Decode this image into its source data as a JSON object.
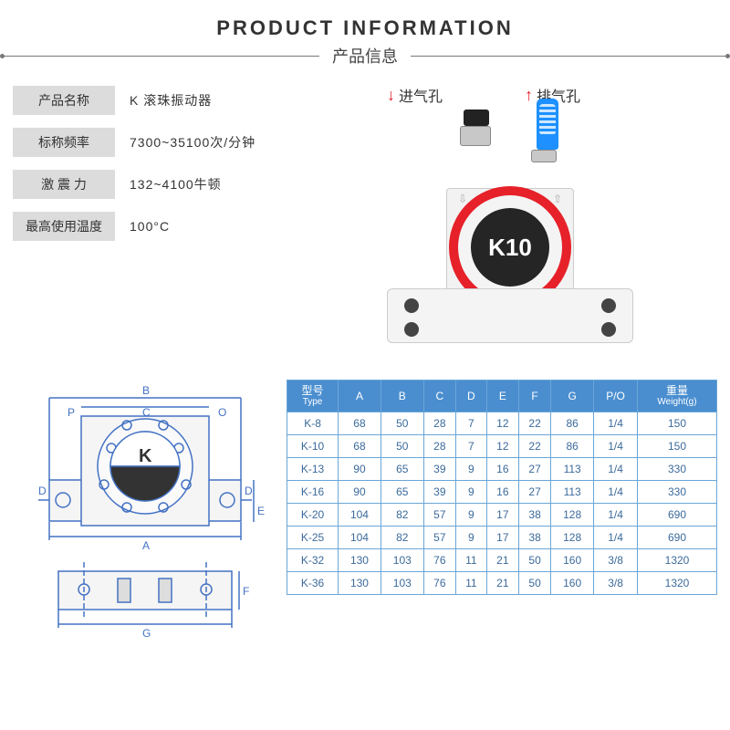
{
  "header": {
    "title_en": "PRODUCT INFORMATION",
    "title_zh": "产品信息"
  },
  "callouts": {
    "inlet": "进气孔",
    "outlet": "排气孔"
  },
  "product_label": "K10",
  "specs": [
    {
      "label": "产品名称",
      "value": "K 滚珠振动器",
      "spaced": false
    },
    {
      "label": "标称频率",
      "value": "7300~35100次/分钟",
      "spaced": false
    },
    {
      "label": "激 震 力",
      "value": "132~4100牛顿",
      "spaced": false
    },
    {
      "label": "最高使用温度",
      "value": "100°C",
      "spaced": false
    }
  ],
  "drawing": {
    "letter": "K",
    "dims": [
      "A",
      "B",
      "C",
      "D",
      "E",
      "F",
      "G",
      "P",
      "O"
    ]
  },
  "table": {
    "columns": [
      {
        "zh": "型号",
        "en": "Type"
      },
      {
        "zh": "A",
        "en": ""
      },
      {
        "zh": "B",
        "en": ""
      },
      {
        "zh": "C",
        "en": ""
      },
      {
        "zh": "D",
        "en": ""
      },
      {
        "zh": "E",
        "en": ""
      },
      {
        "zh": "F",
        "en": ""
      },
      {
        "zh": "G",
        "en": ""
      },
      {
        "zh": "P/O",
        "en": ""
      },
      {
        "zh": "重量",
        "en": "Weight(g)"
      }
    ],
    "rows": [
      [
        "K-8",
        68,
        50,
        28,
        7,
        12,
        22,
        86,
        "1/4",
        150
      ],
      [
        "K-10",
        68,
        50,
        28,
        7,
        12,
        22,
        86,
        "1/4",
        150
      ],
      [
        "K-13",
        90,
        65,
        39,
        9,
        16,
        27,
        113,
        "1/4",
        330
      ],
      [
        "K-16",
        90,
        65,
        39,
        9,
        16,
        27,
        113,
        "1/4",
        330
      ],
      [
        "K-20",
        104,
        82,
        57,
        9,
        17,
        38,
        128,
        "1/4",
        690
      ],
      [
        "K-25",
        104,
        82,
        57,
        9,
        17,
        38,
        128,
        "1/4",
        690
      ],
      [
        "K-32",
        130,
        103,
        76,
        11,
        21,
        50,
        160,
        "3/8",
        1320
      ],
      [
        "K-36",
        130,
        103,
        76,
        11,
        21,
        50,
        160,
        "3/8",
        1320
      ]
    ]
  },
  "colors": {
    "accent_red": "#e62129",
    "table_border": "#6aa6d8",
    "table_header": "#4a8ecf",
    "blue_cap": "#1e90ff"
  }
}
